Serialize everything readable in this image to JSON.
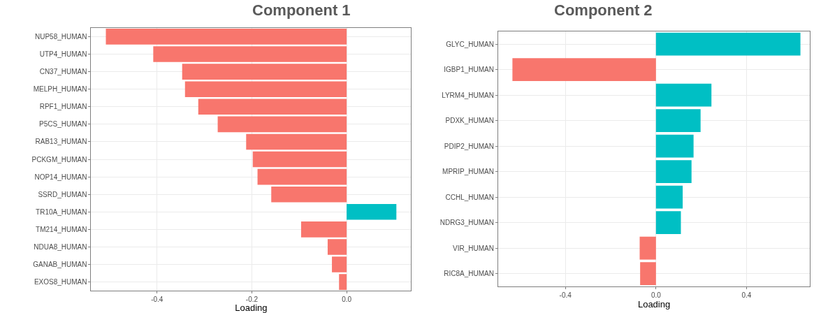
{
  "chart_data": [
    {
      "type": "bar",
      "orientation": "horizontal",
      "title": "Component 1",
      "xlabel": "Loading",
      "categories": [
        "NUP58_HUMAN",
        "UTP4_HUMAN",
        "CN37_HUMAN",
        "MELPH_HUMAN",
        "RPF1_HUMAN",
        "P5CS_HUMAN",
        "RAB13_HUMAN",
        "PCKGM_HUMAN",
        "NOP14_HUMAN",
        "SSRD_HUMAN",
        "TR10A_HUMAN",
        "TM214_HUMAN",
        "NDUA8_HUMAN",
        "GANAB_HUMAN",
        "EXOS8_HUMAN"
      ],
      "values": [
        -0.508,
        -0.408,
        -0.347,
        -0.341,
        -0.313,
        -0.272,
        -0.212,
        -0.198,
        -0.188,
        -0.159,
        0.105,
        -0.096,
        -0.04,
        -0.031,
        -0.016
      ],
      "colors": [
        "#f8766d",
        "#f8766d",
        "#f8766d",
        "#f8766d",
        "#f8766d",
        "#f8766d",
        "#f8766d",
        "#f8766d",
        "#f8766d",
        "#f8766d",
        "#00bfc4",
        "#f8766d",
        "#f8766d",
        "#f8766d",
        "#f8766d"
      ],
      "xlim": [
        -0.539,
        0.136
      ],
      "xticks": [
        {
          "value": -0.4,
          "label": "-0.4"
        },
        {
          "value": -0.2,
          "label": "-0.2"
        },
        {
          "value": 0,
          "label": "0.0"
        }
      ],
      "grid": true
    },
    {
      "type": "bar",
      "orientation": "horizontal",
      "title": "Component 2",
      "xlabel": "Loading",
      "categories": [
        "GLYC_HUMAN",
        "IGBP1_HUMAN",
        "LYRM4_HUMAN",
        "PDXK_HUMAN",
        "PDIP2_HUMAN",
        "MPRIP_HUMAN",
        "CCHL_HUMAN",
        "NDRG3_HUMAN",
        "VIR_HUMAN",
        "RIC8A_HUMAN"
      ],
      "values": [
        0.638,
        -0.634,
        0.245,
        0.197,
        0.166,
        0.157,
        0.118,
        0.11,
        -0.072,
        -0.07
      ],
      "colors": [
        "#00bfc4",
        "#f8766d",
        "#00bfc4",
        "#00bfc4",
        "#00bfc4",
        "#00bfc4",
        "#00bfc4",
        "#00bfc4",
        "#f8766d",
        "#f8766d"
      ],
      "xlim": [
        -0.697,
        0.68
      ],
      "xticks": [
        {
          "value": -0.4,
          "label": "-0.4"
        },
        {
          "value": 0,
          "label": "0.0"
        },
        {
          "value": 0.4,
          "label": "0.4"
        }
      ],
      "grid": true
    }
  ]
}
